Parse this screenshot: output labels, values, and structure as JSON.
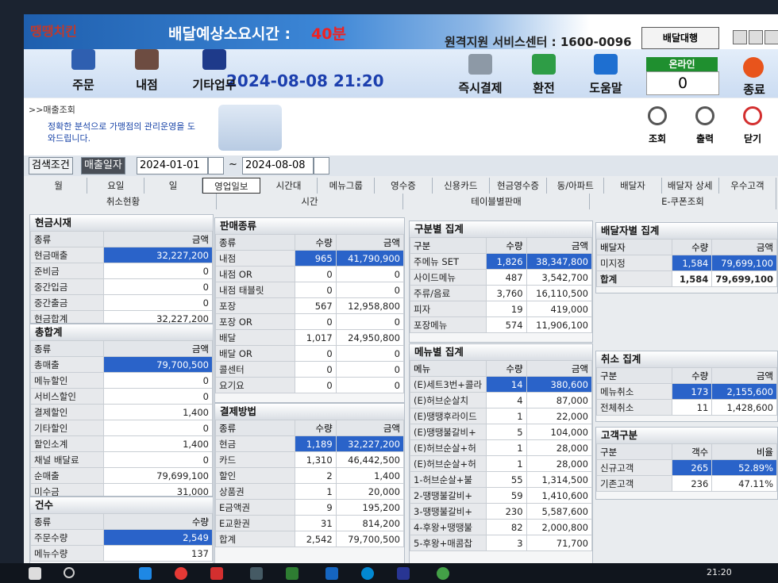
{
  "header": {
    "logo": "땡땡치킨",
    "delivery_label": "배달예상소요시간 :",
    "delivery_time": "40분",
    "support": "원격지원 서비스센터 : 1600-0096",
    "delivery_agent": "배달대행",
    "datetime": "2024-08-08 21:20",
    "online_label": "온라인",
    "online_count": "0"
  },
  "nav_left": [
    "주문",
    "내점",
    "기타업무"
  ],
  "nav_right": [
    "즉시결제",
    "환전",
    "도움말"
  ],
  "exit": "종료",
  "banner": {
    "crumb": ">>매출조회",
    "message": "정확한 분석으로 가맹점의 관리운영을 도와드립니다."
  },
  "actions": [
    "조회",
    "출력",
    "닫기"
  ],
  "search": {
    "label": "검색조건",
    "field": "매출일자",
    "from": "2024-01-01",
    "sep": "~",
    "to": "2024-08-08"
  },
  "tabs_row1": [
    "월",
    "요일",
    "일",
    "영업일보",
    "시간대",
    "메뉴그룹",
    "영수증",
    "신용카드",
    "현금영수증",
    "동/아파트",
    "배달자",
    "배달자 상세",
    "우수고객"
  ],
  "tabs_row2": [
    "취소현황",
    "시간",
    "테이블별판매",
    "E-쿠폰조회"
  ],
  "panels": [
    {
      "title": "현금시재",
      "columns": [
        "종류",
        "금액"
      ],
      "rows": [
        [
          "현금매출",
          "32,227,200"
        ],
        [
          "준비금",
          "0"
        ],
        [
          "중간입금",
          "0"
        ],
        [
          "중간출금",
          "0"
        ],
        [
          "현금합계",
          "32,227,200"
        ]
      ]
    },
    {
      "title": "총합계",
      "columns": [
        "종류",
        "금액"
      ],
      "rows": [
        [
          "총매출",
          "79,700,500"
        ],
        [
          "메뉴할인",
          "0"
        ],
        [
          "서비스할인",
          "0"
        ],
        [
          "결제할인",
          "1,400"
        ],
        [
          "기타할인",
          "0"
        ],
        [
          "할인소계",
          "1,400"
        ],
        [
          "채널 배달료",
          "0"
        ],
        [
          "순매출",
          "79,699,100"
        ],
        [
          "미수금",
          "31,000"
        ]
      ]
    },
    {
      "title": "건수",
      "columns": [
        "종류",
        "수량"
      ],
      "rows": [
        [
          "주문수량",
          "2,549"
        ],
        [
          "메뉴수량",
          "137"
        ]
      ]
    },
    {
      "title": "판매종류",
      "columns": [
        "종류",
        "수량",
        "금액"
      ],
      "rows": [
        [
          "내점",
          "965",
          "41,790,900"
        ],
        [
          "내점 OR",
          "0",
          "0"
        ],
        [
          "내점 태블릿",
          "0",
          "0"
        ],
        [
          "포장",
          "567",
          "12,958,800"
        ],
        [
          "포장 OR",
          "0",
          "0"
        ],
        [
          "배달",
          "1,017",
          "24,950,800"
        ],
        [
          "배달 OR",
          "0",
          "0"
        ],
        [
          "콜센터",
          "0",
          "0"
        ],
        [
          "요기요",
          "0",
          "0"
        ]
      ]
    },
    {
      "title": "결제방법",
      "columns": [
        "종류",
        "수량",
        "금액"
      ],
      "rows": [
        [
          "현금",
          "1,189",
          "32,227,200"
        ],
        [
          "카드",
          "1,310",
          "46,442,500"
        ],
        [
          "할인",
          "2",
          "1,400"
        ],
        [
          "상품권",
          "1",
          "20,000"
        ],
        [
          "E금액권",
          "9",
          "195,200"
        ],
        [
          "E교환권",
          "31",
          "814,200"
        ],
        [
          "합계",
          "2,542",
          "79,700,500"
        ]
      ]
    },
    {
      "title": "구분별 집계",
      "columns": [
        "구분",
        "수량",
        "금액"
      ],
      "rows": [
        [
          "주메뉴 SET",
          "1,826",
          "38,347,800"
        ],
        [
          "사이드메뉴",
          "487",
          "3,542,700"
        ],
        [
          "주류/음료",
          "3,760",
          "16,110,500"
        ],
        [
          "피자",
          "19",
          "419,000"
        ],
        [
          "포장메뉴",
          "574",
          "11,906,100"
        ]
      ]
    },
    {
      "title": "메뉴별 집계",
      "columns": [
        "메뉴",
        "수량",
        "금액"
      ],
      "rows": [
        [
          "(E)세트3번+콜라",
          "14",
          "380,600"
        ],
        [
          "(E)허브순살치",
          "4",
          "87,000"
        ],
        [
          "(E)땡땡후라이드",
          "1",
          "22,000"
        ],
        [
          "(E)땡땡불갈비+",
          "5",
          "104,000"
        ],
        [
          "(E)허브순살+허",
          "1",
          "28,000"
        ],
        [
          "(E)허브순살+허",
          "1",
          "28,000"
        ],
        [
          "1-허브순살+불",
          "55",
          "1,314,500"
        ],
        [
          "2-땡땡불갈비+",
          "59",
          "1,410,600"
        ],
        [
          "3-땡땡불갈비+",
          "230",
          "5,587,600"
        ],
        [
          "4-후왕+땡땡불",
          "82",
          "2,000,800"
        ],
        [
          "5-후왕+매콤찹",
          "3",
          "71,700"
        ]
      ]
    },
    {
      "title": "배달자별 집계",
      "columns": [
        "배달자",
        "수량",
        "금액"
      ],
      "rows": [
        [
          "미지정",
          "1,584",
          "79,699,100"
        ],
        [
          "합계",
          "1,584",
          "79,699,100"
        ]
      ]
    },
    {
      "title": "취소 집계",
      "columns": [
        "구분",
        "수량",
        "금액"
      ],
      "rows": [
        [
          "메뉴취소",
          "173",
          "2,155,600"
        ],
        [
          "전체취소",
          "11",
          "1,428,600"
        ]
      ]
    },
    {
      "title": "고객구분",
      "columns": [
        "구분",
        "객수",
        "비율"
      ],
      "rows": [
        [
          "신규고객",
          "265",
          "52.89%"
        ],
        [
          "기존고객",
          "236",
          "47.11%"
        ]
      ]
    }
  ],
  "taskbar_time": "21:20"
}
